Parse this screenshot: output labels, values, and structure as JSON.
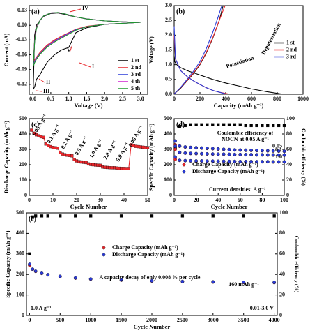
{
  "chart_data": [
    {
      "type": "line",
      "panel_label": "(a)",
      "xlabel": "Voltage (V)",
      "ylabel": "Current (mA)",
      "xlim": [
        -0.1,
        3.2
      ],
      "ylim": [
        -0.14,
        0.04
      ],
      "xticks": [
        {
          "value": 0,
          "label": "0.0"
        },
        0.5,
        {
          "value": 1,
          "label": "1.0"
        },
        1.5,
        {
          "value": 2,
          "label": "2.0"
        },
        2.5,
        {
          "value": 3,
          "label": "3.0"
        }
      ],
      "yticks": [
        0.03,
        {
          "value": 0,
          "label": "0.00"
        },
        -0.03,
        -0.06,
        -0.09,
        -0.12
      ],
      "legend": "lower right",
      "annotations": [
        "IV",
        "V",
        "I",
        "II",
        "III"
      ],
      "x": [
        0.01,
        0.05,
        0.1,
        0.2,
        0.3,
        0.5,
        0.7,
        0.9,
        1.0,
        1.2,
        1.5,
        2.0,
        2.5,
        3.0,
        2.5,
        2.0,
        1.5,
        1.2,
        1.0,
        0.8,
        0.6,
        0.4,
        0.2,
        0.1,
        0.05,
        0.01
      ],
      "series": [
        {
          "name": "1 st",
          "color": "#000000",
          "values": [
            -0.13,
            -0.02,
            0.0,
            0.01,
            0.018,
            0.024,
            0.025,
            0.022,
            0.02,
            0.017,
            0.013,
            0.009,
            0.007,
            0.006,
            0.004,
            0.002,
            -0.005,
            -0.015,
            -0.045,
            -0.05,
            -0.06,
            -0.075,
            -0.1,
            -0.11,
            -0.125,
            -0.13
          ]
        },
        {
          "name": "2 nd",
          "color": "#e8262b",
          "values": [
            -0.075,
            -0.03,
            -0.005,
            0.01,
            0.019,
            0.025,
            0.026,
            0.023,
            0.021,
            0.017,
            0.013,
            0.009,
            0.007,
            0.006,
            0.004,
            0.002,
            -0.002,
            -0.008,
            -0.015,
            -0.022,
            -0.03,
            -0.04,
            -0.055,
            -0.065,
            -0.07,
            -0.075
          ]
        },
        {
          "name": "3 rd",
          "color": "#2a3bd8",
          "values": [
            -0.08,
            -0.032,
            -0.006,
            0.01,
            0.019,
            0.025,
            0.026,
            0.023,
            0.021,
            0.017,
            0.013,
            0.009,
            0.007,
            0.006,
            0.004,
            0.002,
            -0.003,
            -0.009,
            -0.016,
            -0.024,
            -0.032,
            -0.042,
            -0.057,
            -0.067,
            -0.073,
            -0.08
          ]
        },
        {
          "name": "4 th",
          "color": "#d020d0",
          "values": [
            -0.082,
            -0.033,
            -0.006,
            0.01,
            0.019,
            0.025,
            0.026,
            0.023,
            0.021,
            0.017,
            0.013,
            0.009,
            0.007,
            0.006,
            0.004,
            0.002,
            -0.003,
            -0.01,
            -0.017,
            -0.025,
            -0.033,
            -0.043,
            -0.058,
            -0.068,
            -0.075,
            -0.082
          ]
        },
        {
          "name": "5 th",
          "color": "#1a9a2a",
          "values": [
            -0.083,
            -0.034,
            -0.007,
            0.01,
            0.019,
            0.025,
            0.026,
            0.023,
            0.021,
            0.017,
            0.013,
            0.009,
            0.007,
            0.006,
            0.004,
            0.002,
            -0.003,
            -0.01,
            -0.018,
            -0.026,
            -0.034,
            -0.044,
            -0.059,
            -0.069,
            -0.076,
            -0.083
          ]
        }
      ]
    },
    {
      "type": "line",
      "panel_label": "(b)",
      "xlabel": "Capacity (mAh g⁻¹)",
      "ylabel": "Voltage (V)",
      "xlim": [
        0,
        1000
      ],
      "ylim": [
        0,
        3.0
      ],
      "xticks": [
        0,
        200,
        400,
        600,
        800,
        1000
      ],
      "yticks": [
        {
          "value": 0,
          "label": "0.0"
        },
        0.5,
        {
          "value": 1,
          "label": "1.0"
        },
        1.5,
        {
          "value": 2,
          "label": "2.0"
        },
        2.5,
        {
          "value": 3,
          "label": "3.0"
        }
      ],
      "legend": "center right",
      "annotations": [
        "Depotassiation",
        "Potassiation"
      ],
      "series": [
        {
          "name": "1 st",
          "color": "#000000",
          "x": [
            0,
            5,
            20,
            50,
            100,
            200,
            300,
            400,
            500,
            600,
            700,
            830,
            null,
            0,
            50,
            100,
            150,
            200,
            250,
            300,
            350,
            380
          ],
          "values": [
            1.3,
            1.1,
            1.0,
            0.9,
            0.8,
            0.65,
            0.5,
            0.38,
            0.28,
            0.18,
            0.1,
            0.01,
            null,
            0.01,
            0.2,
            0.45,
            0.7,
            1.0,
            1.4,
            1.9,
            2.5,
            3.0
          ]
        },
        {
          "name": "2 nd",
          "color": "#e8262b",
          "x": [
            0,
            10,
            50,
            100,
            150,
            200,
            250,
            300,
            350,
            420,
            null,
            0,
            50,
            100,
            150,
            200,
            250,
            300,
            350,
            395
          ],
          "values": [
            2.0,
            1.2,
            0.8,
            0.6,
            0.45,
            0.33,
            0.22,
            0.13,
            0.07,
            0.01,
            null,
            0.01,
            0.22,
            0.47,
            0.72,
            1.02,
            1.42,
            1.92,
            2.5,
            3.0
          ]
        },
        {
          "name": "3 rd",
          "color": "#2a3bd8",
          "x": [
            0,
            10,
            50,
            100,
            150,
            200,
            250,
            300,
            350,
            400,
            null,
            0,
            50,
            100,
            150,
            200,
            250,
            300,
            340,
            370
          ],
          "values": [
            2.3,
            1.2,
            0.8,
            0.6,
            0.45,
            0.33,
            0.22,
            0.13,
            0.07,
            0.01,
            null,
            0.01,
            0.23,
            0.5,
            0.78,
            1.1,
            1.55,
            2.1,
            2.6,
            3.0
          ]
        }
      ]
    },
    {
      "type": "line",
      "panel_label": "(c)",
      "xlabel": "Cycle Number",
      "ylabel": "Discharge Capacity (mAh g⁻¹)",
      "xlim": [
        0,
        50
      ],
      "ylim": [
        0,
        500
      ],
      "xticks": [
        0,
        10,
        20,
        30,
        40,
        50
      ],
      "yticks": [
        0,
        100,
        200,
        300,
        400,
        500
      ],
      "annotations": [
        "0.05 A g⁻¹",
        "0.1 A g⁻¹",
        "0.2 A g⁻¹",
        "0.5 A g⁻¹",
        "1.0 A g⁻¹",
        "2.0 A g⁻¹",
        "5.0 A g⁻¹",
        "0.05 A g⁻¹"
      ],
      "x": [
        1,
        2,
        3,
        4,
        5,
        6,
        7,
        8,
        9,
        10,
        11,
        12,
        13,
        14,
        15,
        16,
        17,
        18,
        19,
        20,
        21,
        22,
        23,
        24,
        25,
        26,
        27,
        28,
        29,
        30,
        31,
        32,
        33,
        34,
        35,
        36,
        37,
        38,
        39,
        40,
        41,
        42,
        43,
        44,
        45,
        46,
        47,
        48,
        49,
        50
      ],
      "series": [
        {
          "color": "#e8262b",
          "marker": "square",
          "values": [
            425,
            405,
            395,
            388,
            382,
            378,
            335,
            325,
            318,
            313,
            310,
            308,
            280,
            270,
            265,
            262,
            260,
            258,
            235,
            225,
            220,
            218,
            216,
            214,
            205,
            202,
            200,
            198,
            197,
            196,
            185,
            183,
            182,
            181,
            180,
            180,
            178,
            177,
            176,
            176,
            175,
            175,
            330,
            325,
            320,
            318,
            316,
            314,
            312,
            310
          ]
        }
      ]
    },
    {
      "type": "scatter",
      "panel_label": "(d)",
      "xlabel": "Cycle Number",
      "ylabel": "Specific Capacity (mAh g⁻¹)",
      "y2label": "Coulombic efficiency (%)",
      "xlim": [
        0,
        100
      ],
      "ylim": [
        0,
        500
      ],
      "y2lim": [
        0,
        100
      ],
      "xticks": [
        0,
        20,
        40,
        60,
        80,
        100
      ],
      "yticks": [
        0,
        100,
        200,
        300,
        400,
        500
      ],
      "y2ticks": [
        0,
        20,
        40,
        60,
        80,
        100
      ],
      "legend": "lower left",
      "annotations": [
        "Coulombic efficiency of",
        "NOCN at 0.05 A g⁻¹",
        "Current densities: A g⁻¹"
      ],
      "x": [
        1,
        5,
        10,
        15,
        20,
        25,
        30,
        35,
        40,
        45,
        50,
        55,
        60,
        65,
        70,
        75,
        80,
        85,
        90,
        95,
        100
      ],
      "series": [
        {
          "color": "#000000",
          "marker": "square",
          "axis": "y2",
          "values": [
            62,
            90,
            91,
            92,
            92,
            92,
            92,
            92,
            92,
            92,
            92,
            92,
            92,
            91,
            91,
            91,
            91,
            91,
            91,
            91,
            91
          ]
        },
        {
          "name": "Charge Capacity (mAh g⁻¹)",
          "label": "0.05",
          "color": "#e8262b",
          "marker": "circle",
          "values": [
            330,
            320,
            315,
            312,
            310,
            308,
            306,
            304,
            302,
            300,
            298,
            296,
            295,
            294,
            293,
            292,
            291,
            290,
            289,
            288,
            287
          ]
        },
        {
          "name": "Discharge Capacity (mAh g⁻¹)",
          "color": "#2a3bd8",
          "marker": "circle",
          "values": [
            355,
            322,
            316,
            313,
            311,
            309,
            307,
            305,
            303,
            301,
            299,
            297,
            296,
            295,
            294,
            293,
            292,
            291,
            290,
            289,
            288
          ]
        },
        {
          "label": "0.1",
          "color": "#e8262b",
          "marker": "circle",
          "values": [
            300,
            280,
            275,
            273,
            272,
            271,
            270,
            269,
            268,
            268,
            267,
            266,
            266,
            265,
            265,
            264,
            264,
            263,
            263,
            262,
            262
          ]
        },
        {
          "color": "#2a3bd8",
          "marker": "circle",
          "values": [
            320,
            281,
            276,
            274,
            273,
            272,
            271,
            270,
            269,
            269,
            268,
            267,
            267,
            266,
            266,
            265,
            265,
            264,
            264,
            263,
            263
          ]
        },
        {
          "label": "1.0",
          "color": "#e8262b",
          "marker": "circle",
          "values": [
            235,
            228,
            226,
            225,
            224,
            224,
            223,
            223,
            222,
            222,
            221,
            221,
            220,
            220,
            220,
            219,
            219,
            219,
            218,
            218,
            218
          ]
        },
        {
          "color": "#2a3bd8",
          "marker": "circle",
          "values": [
            250,
            229,
            227,
            226,
            225,
            225,
            224,
            224,
            223,
            223,
            222,
            222,
            221,
            221,
            221,
            220,
            220,
            220,
            219,
            219,
            219
          ]
        }
      ]
    },
    {
      "type": "scatter",
      "panel_label": "(e)",
      "xlabel": "Cycle Number",
      "ylabel": "Specific Capacity (mAh g⁻¹)",
      "y2label": "Coulombic efficiency (%)",
      "xlim": [
        -50,
        4050
      ],
      "ylim": [
        0,
        500
      ],
      "y2lim": [
        0,
        100
      ],
      "xticks": [
        0,
        500,
        1000,
        1500,
        2000,
        2500,
        3000,
        3500,
        4000
      ],
      "yticks": [
        0,
        100,
        200,
        300,
        400,
        500
      ],
      "y2ticks": [
        0,
        20,
        40,
        60,
        80,
        100
      ],
      "legend": "upper center",
      "annotations": [
        "160 mAh g⁻¹",
        "A capacity decay of only 0.008 % per cycle",
        "1.0 A g⁻¹",
        "0.01-3.0 V"
      ],
      "x": [
        1,
        50,
        100,
        200,
        300,
        500,
        750,
        1000,
        1500,
        2000,
        2500,
        3000,
        3500,
        4000
      ],
      "series": [
        {
          "color": "#000000",
          "marker": "square",
          "axis": "y2",
          "values": [
            60,
            96,
            97,
            97,
            97,
            97,
            97,
            97,
            97,
            97,
            97,
            97,
            97,
            97
          ]
        },
        {
          "name": "Charge Capacity (mAh g⁻¹)",
          "color": "#e8262b",
          "marker": "circle",
          "values": [
            245,
            225,
            215,
            205,
            198,
            190,
            182,
            177,
            172,
            168,
            165,
            163,
            161,
            160
          ]
        },
        {
          "name": "Discharge Capacity (mAh g⁻¹)",
          "color": "#2a3bd8",
          "marker": "circle",
          "values": [
            250,
            226,
            216,
            206,
            199,
            191,
            183,
            178,
            173,
            169,
            166,
            164,
            162,
            161
          ]
        }
      ]
    }
  ]
}
